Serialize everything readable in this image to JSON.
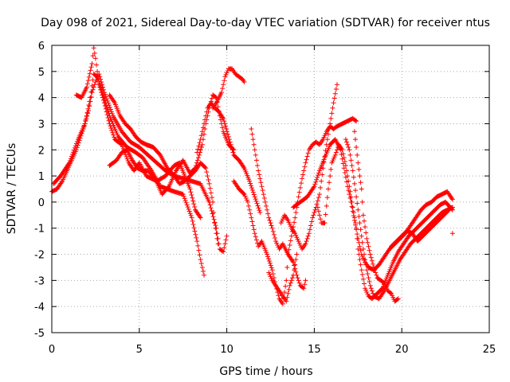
{
  "chart_data": {
    "type": "scatter",
    "title": "Day 098 of 2021, Sidereal Day-to-day VTEC variation (SDTVAR) for receiver ntus",
    "xlabel": "GPS time / hours",
    "ylabel": "SDTVAR / TECUs",
    "xlim": [
      0,
      25
    ],
    "ylim": [
      -5,
      6
    ],
    "xticks": [
      0,
      5,
      10,
      15,
      20,
      25
    ],
    "yticks": [
      -5,
      -4,
      -3,
      -2,
      -1,
      0,
      1,
      2,
      3,
      4,
      5,
      6
    ],
    "grid": true,
    "marker": "+",
    "series_color": "#ff0000",
    "tracks": [
      [
        [
          0.0,
          0.4
        ],
        [
          0.3,
          0.5
        ],
        [
          0.6,
          0.8
        ],
        [
          1.0,
          1.4
        ],
        [
          1.4,
          2.0
        ],
        [
          1.8,
          2.8
        ],
        [
          2.1,
          3.5
        ],
        [
          2.3,
          4.2
        ],
        [
          2.5,
          4.6
        ],
        [
          2.7,
          4.9
        ],
        [
          3.0,
          4.2
        ],
        [
          3.5,
          3.3
        ],
        [
          4.0,
          2.7
        ],
        [
          4.5,
          2.3
        ],
        [
          5.0,
          2.1
        ],
        [
          5.5,
          1.8
        ],
        [
          6.0,
          1.5
        ],
        [
          6.5,
          1.2
        ],
        [
          7.0,
          1.0
        ],
        [
          7.5,
          0.9
        ],
        [
          8.0,
          0.8
        ],
        [
          8.5,
          0.7
        ],
        [
          9.0,
          0.0
        ],
        [
          9.4,
          -1.0
        ],
        [
          9.6,
          -1.8
        ],
        [
          9.8,
          -1.9
        ],
        [
          10.0,
          -1.3
        ]
      ],
      [
        [
          0.1,
          0.7
        ],
        [
          0.5,
          1.0
        ],
        [
          1.0,
          1.5
        ],
        [
          1.5,
          2.4
        ],
        [
          1.9,
          3.0
        ],
        [
          2.2,
          4.0
        ],
        [
          2.4,
          4.9
        ],
        [
          2.6,
          4.8
        ],
        [
          2.9,
          4.2
        ],
        [
          3.3,
          3.3
        ],
        [
          3.8,
          2.5
        ],
        [
          4.3,
          2.1
        ],
        [
          4.8,
          1.9
        ],
        [
          5.2,
          1.7
        ],
        [
          5.7,
          1.2
        ],
        [
          6.2,
          0.6
        ],
        [
          6.6,
          0.5
        ],
        [
          7.0,
          0.4
        ],
        [
          7.5,
          0.3
        ],
        [
          8.0,
          -0.6
        ],
        [
          8.3,
          -1.5
        ],
        [
          8.5,
          -2.2
        ],
        [
          8.7,
          -2.8
        ]
      ],
      [
        [
          1.4,
          4.1
        ],
        [
          1.7,
          4.0
        ],
        [
          2.0,
          4.4
        ],
        [
          2.3,
          5.3
        ],
        [
          2.4,
          5.9
        ],
        [
          2.5,
          5.5
        ],
        [
          2.7,
          4.5
        ],
        [
          3.0,
          3.8
        ],
        [
          3.3,
          3.0
        ],
        [
          3.6,
          2.4
        ],
        [
          4.0,
          2.2
        ],
        [
          4.4,
          1.5
        ],
        [
          4.7,
          1.2
        ],
        [
          5.0,
          1.5
        ],
        [
          5.4,
          1.0
        ],
        [
          6.0,
          0.8
        ],
        [
          6.5,
          1.0
        ],
        [
          7.0,
          1.4
        ],
        [
          7.3,
          1.5
        ],
        [
          7.6,
          1.0
        ],
        [
          7.9,
          0.5
        ],
        [
          8.2,
          -0.3
        ],
        [
          8.5,
          -0.6
        ]
      ],
      [
        [
          3.3,
          4.1
        ],
        [
          3.6,
          3.8
        ],
        [
          3.9,
          3.3
        ],
        [
          4.2,
          3.0
        ],
        [
          4.5,
          2.8
        ],
        [
          4.8,
          2.5
        ],
        [
          5.1,
          2.3
        ],
        [
          5.4,
          2.2
        ],
        [
          5.8,
          2.1
        ],
        [
          6.2,
          1.8
        ],
        [
          6.6,
          1.3
        ],
        [
          7.0,
          1.0
        ],
        [
          7.3,
          0.7
        ],
        [
          7.6,
          0.8
        ],
        [
          7.9,
          1.0
        ],
        [
          8.2,
          1.2
        ],
        [
          8.5,
          1.5
        ],
        [
          8.8,
          1.3
        ],
        [
          9.0,
          0.7
        ],
        [
          9.2,
          0.0
        ],
        [
          9.3,
          -0.8
        ],
        [
          9.5,
          -1.6
        ]
      ],
      [
        [
          3.3,
          1.4
        ],
        [
          3.7,
          1.6
        ],
        [
          4.0,
          1.9
        ],
        [
          4.3,
          2.0
        ],
        [
          4.6,
          1.6
        ],
        [
          4.9,
          1.3
        ],
        [
          5.2,
          1.2
        ],
        [
          5.5,
          1.2
        ],
        [
          5.9,
          0.9
        ],
        [
          6.3,
          0.3
        ],
        [
          6.7,
          0.6
        ],
        [
          7.1,
          1.2
        ],
        [
          7.5,
          1.6
        ],
        [
          7.9,
          1.1
        ],
        [
          8.2,
          1.3
        ],
        [
          8.6,
          2.2
        ],
        [
          8.8,
          3.0
        ],
        [
          9.0,
          3.6
        ],
        [
          9.2,
          4.1
        ],
        [
          9.4,
          4.0
        ],
        [
          9.6,
          3.3
        ],
        [
          9.8,
          2.7
        ],
        [
          10.1,
          2.2
        ],
        [
          10.4,
          2.0
        ]
      ],
      [
        [
          8.3,
          1.9
        ],
        [
          8.5,
          2.4
        ],
        [
          8.7,
          3.0
        ],
        [
          8.9,
          3.6
        ],
        [
          9.1,
          3.8
        ],
        [
          9.3,
          3.6
        ],
        [
          9.5,
          3.5
        ],
        [
          9.8,
          3.2
        ],
        [
          10.1,
          2.5
        ],
        [
          10.4,
          1.8
        ],
        [
          10.7,
          1.6
        ],
        [
          11.0,
          1.3
        ],
        [
          11.3,
          0.8
        ],
        [
          11.6,
          0.2
        ],
        [
          11.9,
          -0.4
        ]
      ],
      [
        [
          9.2,
          3.6
        ],
        [
          9.4,
          3.8
        ],
        [
          9.7,
          4.2
        ],
        [
          9.9,
          4.8
        ],
        [
          10.1,
          5.1
        ],
        [
          10.3,
          5.1
        ],
        [
          10.5,
          4.9
        ],
        [
          10.7,
          4.8
        ],
        [
          10.9,
          4.7
        ],
        [
          11.0,
          4.6
        ]
      ],
      [
        [
          10.4,
          0.8
        ],
        [
          10.7,
          0.5
        ],
        [
          11.0,
          0.3
        ],
        [
          11.2,
          0.0
        ],
        [
          11.4,
          -0.6
        ],
        [
          11.6,
          -1.2
        ],
        [
          11.8,
          -1.7
        ],
        [
          12.0,
          -1.5
        ],
        [
          12.3,
          -2.0
        ],
        [
          12.6,
          -2.6
        ],
        [
          12.8,
          -3.2
        ],
        [
          13.0,
          -3.7
        ],
        [
          13.2,
          -3.9
        ],
        [
          13.4,
          -3.0
        ],
        [
          13.5,
          -2.0
        ],
        [
          13.7,
          -1.3
        ],
        [
          13.9,
          -0.6
        ],
        [
          14.1,
          0.2
        ],
        [
          14.3,
          0.9
        ],
        [
          14.5,
          1.5
        ],
        [
          14.7,
          2.0
        ],
        [
          14.9,
          2.2
        ],
        [
          15.1,
          2.3
        ],
        [
          15.3,
          2.2
        ],
        [
          15.5,
          2.4
        ],
        [
          15.7,
          2.7
        ],
        [
          15.9,
          2.9
        ],
        [
          16.1,
          2.8
        ],
        [
          16.3,
          2.9
        ],
        [
          16.6,
          3.0
        ],
        [
          16.9,
          3.1
        ],
        [
          17.2,
          3.2
        ],
        [
          17.4,
          3.1
        ]
      ],
      [
        [
          11.4,
          2.8
        ],
        [
          11.6,
          2.0
        ],
        [
          11.8,
          1.2
        ],
        [
          12.0,
          0.6
        ],
        [
          12.2,
          0.0
        ],
        [
          12.4,
          -0.6
        ],
        [
          12.6,
          -1.0
        ],
        [
          12.8,
          -1.5
        ],
        [
          13.0,
          -1.8
        ],
        [
          13.2,
          -1.6
        ],
        [
          13.5,
          -2.0
        ],
        [
          13.8,
          -2.3
        ],
        [
          14.0,
          -2.8
        ],
        [
          14.2,
          -3.2
        ],
        [
          14.4,
          -3.3
        ],
        [
          14.5,
          -3.0
        ]
      ],
      [
        [
          13.1,
          -0.8
        ],
        [
          13.3,
          -0.5
        ],
        [
          13.5,
          -0.7
        ],
        [
          13.7,
          -1.0
        ],
        [
          13.9,
          -1.2
        ],
        [
          14.1,
          -1.5
        ],
        [
          14.3,
          -1.8
        ],
        [
          14.5,
          -1.6
        ],
        [
          14.7,
          -1.2
        ],
        [
          14.9,
          -0.6
        ],
        [
          15.1,
          -0.2
        ],
        [
          15.3,
          0.3
        ],
        [
          15.5,
          1.3
        ],
        [
          15.7,
          2.2
        ],
        [
          15.9,
          3.0
        ],
        [
          16.1,
          3.8
        ],
        [
          16.3,
          4.5
        ]
      ],
      [
        [
          12.4,
          -2.7
        ],
        [
          12.6,
          -3.0
        ],
        [
          12.8,
          -3.2
        ],
        [
          13.0,
          -3.4
        ],
        [
          13.2,
          -3.6
        ],
        [
          13.4,
          -3.8
        ],
        [
          13.6,
          -3.2
        ],
        [
          13.8,
          -2.8
        ],
        [
          13.9,
          -2.4
        ],
        [
          14.0,
          -2.0
        ]
      ],
      [
        [
          13.8,
          -0.2
        ],
        [
          14.2,
          0.0
        ],
        [
          14.6,
          0.2
        ],
        [
          15.0,
          0.6
        ],
        [
          15.3,
          1.2
        ],
        [
          15.6,
          1.7
        ],
        [
          15.9,
          2.2
        ],
        [
          16.2,
          2.4
        ],
        [
          16.5,
          2.0
        ],
        [
          16.7,
          1.3
        ],
        [
          16.9,
          0.6
        ],
        [
          17.1,
          0.0
        ],
        [
          17.3,
          -0.7
        ],
        [
          17.5,
          -1.4
        ],
        [
          17.7,
          -2.0
        ],
        [
          17.9,
          -2.3
        ],
        [
          18.1,
          -2.5
        ],
        [
          18.4,
          -2.6
        ],
        [
          18.7,
          -2.4
        ],
        [
          19.0,
          -2.1
        ],
        [
          19.3,
          -1.8
        ],
        [
          19.6,
          -1.6
        ],
        [
          19.9,
          -1.4
        ],
        [
          20.2,
          -1.2
        ],
        [
          20.5,
          -0.9
        ],
        [
          20.8,
          -0.6
        ],
        [
          21.1,
          -0.3
        ],
        [
          21.4,
          -0.1
        ],
        [
          21.7,
          0.0
        ],
        [
          22.0,
          0.2
        ],
        [
          22.3,
          0.3
        ],
        [
          22.6,
          0.4
        ],
        [
          22.9,
          0.1
        ]
      ],
      [
        [
          15.2,
          -0.2
        ],
        [
          15.4,
          -0.8
        ],
        [
          15.6,
          -0.8
        ],
        [
          15.8,
          0.5
        ],
        [
          16.0,
          1.5
        ],
        [
          16.2,
          1.8
        ],
        [
          16.4,
          2.2
        ],
        [
          16.6,
          2.0
        ],
        [
          16.8,
          1.4
        ],
        [
          17.0,
          0.6
        ],
        [
          17.2,
          -0.2
        ],
        [
          17.4,
          -1.0
        ],
        [
          17.5,
          -1.8
        ],
        [
          17.7,
          -2.6
        ],
        [
          17.9,
          -3.3
        ],
        [
          18.1,
          -3.6
        ],
        [
          18.3,
          -3.7
        ],
        [
          18.6,
          -3.5
        ],
        [
          18.9,
          -3.3
        ],
        [
          19.2,
          -2.8
        ],
        [
          19.5,
          -2.3
        ],
        [
          19.8,
          -1.9
        ],
        [
          20.1,
          -1.6
        ],
        [
          20.4,
          -1.3
        ],
        [
          20.7,
          -1.1
        ],
        [
          21.0,
          -0.9
        ],
        [
          21.3,
          -0.7
        ],
        [
          21.6,
          -0.5
        ],
        [
          21.9,
          -0.3
        ],
        [
          22.2,
          -0.1
        ],
        [
          22.5,
          0.0
        ],
        [
          22.9,
          -0.3
        ]
      ],
      [
        [
          16.8,
          2.4
        ],
        [
          17.0,
          2.0
        ],
        [
          17.2,
          1.2
        ],
        [
          17.4,
          0.2
        ],
        [
          17.6,
          -0.8
        ],
        [
          17.8,
          -1.8
        ],
        [
          18.0,
          -2.6
        ],
        [
          18.2,
          -3.2
        ],
        [
          18.4,
          -3.6
        ],
        [
          18.7,
          -3.7
        ],
        [
          19.0,
          -3.4
        ],
        [
          19.3,
          -3.0
        ],
        [
          19.6,
          -2.6
        ],
        [
          19.9,
          -2.2
        ],
        [
          20.2,
          -1.9
        ],
        [
          20.5,
          -1.6
        ],
        [
          20.8,
          -1.4
        ],
        [
          21.1,
          -1.2
        ],
        [
          21.4,
          -1.0
        ],
        [
          21.7,
          -0.8
        ],
        [
          22.0,
          -0.6
        ],
        [
          22.3,
          -0.4
        ],
        [
          22.6,
          -0.3
        ],
        [
          22.9,
          -0.2
        ]
      ],
      [
        [
          17.3,
          2.7
        ],
        [
          17.5,
          1.5
        ],
        [
          17.7,
          0.5
        ],
        [
          17.8,
          -0.5
        ],
        [
          18.0,
          -1.4
        ],
        [
          18.2,
          -2.0
        ],
        [
          18.4,
          -2.5
        ],
        [
          18.6,
          -2.9
        ],
        [
          18.8,
          -3.0
        ],
        [
          19.0,
          -3.1
        ],
        [
          19.2,
          -3.4
        ],
        [
          19.4,
          -3.5
        ],
        [
          19.6,
          -3.8
        ],
        [
          19.8,
          -3.7
        ]
      ],
      [
        [
          19.4,
          -1.7
        ],
        [
          19.7,
          -1.5
        ],
        [
          20.0,
          -1.3
        ],
        [
          20.3,
          -1.1
        ],
        [
          20.6,
          -1.2
        ],
        [
          20.9,
          -1.5
        ],
        [
          21.2,
          -1.3
        ],
        [
          21.5,
          -1.1
        ],
        [
          21.8,
          -0.9
        ],
        [
          22.1,
          -0.7
        ],
        [
          22.4,
          -0.5
        ],
        [
          22.7,
          -0.3
        ]
      ],
      [
        [
          22.9,
          -1.2
        ]
      ]
    ]
  }
}
